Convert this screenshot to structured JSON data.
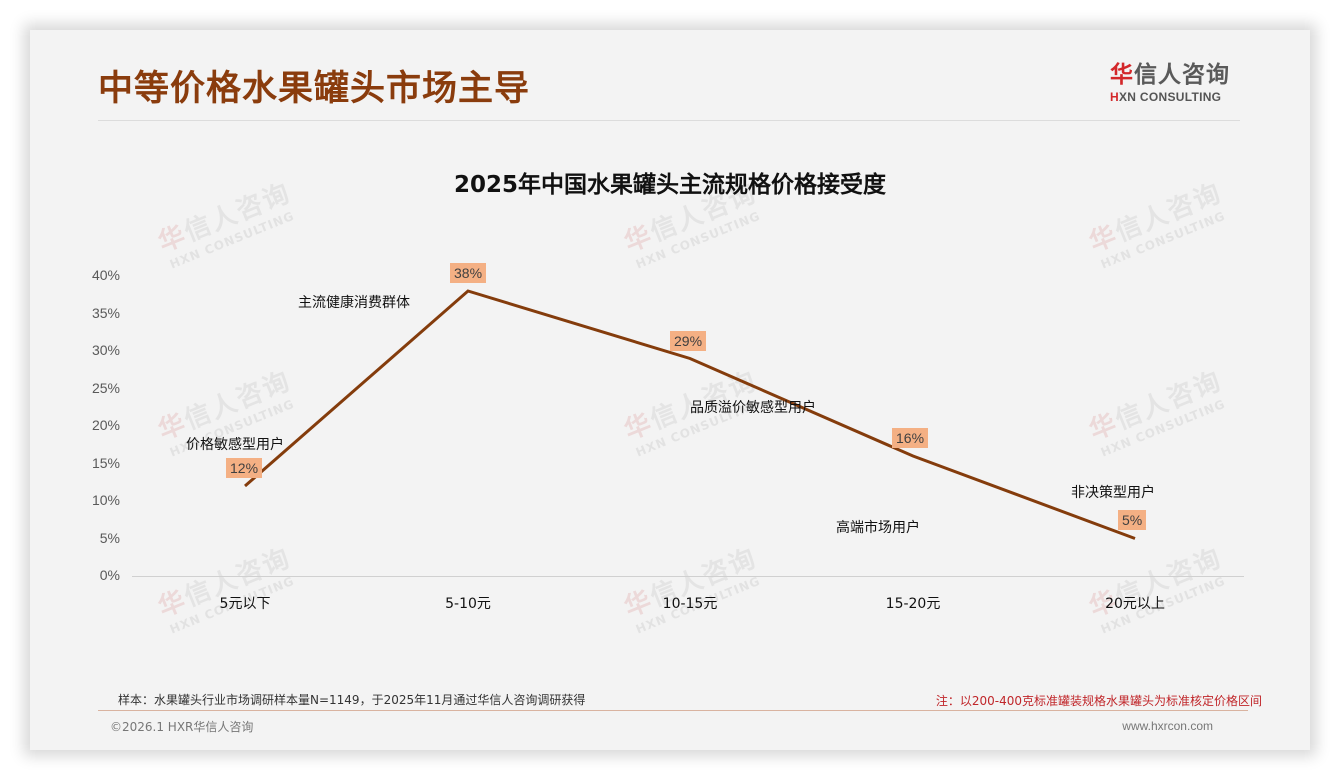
{
  "header": {
    "title": "中等价格水果罐头市场主导",
    "logo_cn_first": "华",
    "logo_cn_rest": "信人咨询",
    "logo_en_first": "H",
    "logo_en_rest": "XN CONSULTING"
  },
  "watermark": {
    "cn_first": "华",
    "cn_rest": "信人咨询",
    "en": "HXN CONSULTING"
  },
  "chart_data": {
    "type": "line",
    "title": "2025年中国水果罐头主流规格价格接受度",
    "categories": [
      "5元以下",
      "5-10元",
      "10-15元",
      "15-20元",
      "20元以上"
    ],
    "values": [
      12,
      38,
      29,
      16,
      5
    ],
    "value_labels": [
      "12%",
      "38%",
      "29%",
      "16%",
      "5%"
    ],
    "annotations": [
      "价格敏感型用户",
      "主流健康消费群体",
      "品质溢价敏感型用户",
      "高端市场用户",
      "非决策型用户"
    ],
    "ylim": [
      0,
      40
    ],
    "yticks": [
      "0%",
      "5%",
      "10%",
      "15%",
      "20%",
      "25%",
      "30%",
      "35%",
      "40%"
    ],
    "xlabel": "",
    "ylabel": "",
    "grid": false,
    "legend": "none",
    "line_color": "#843c0c",
    "label_bg_color": "#f4b084"
  },
  "footer": {
    "sample_note": "样本：水果罐头行业市场调研样本量N=1149，于2025年11月通过华信人咨询调研获得",
    "right_note": "注：以200-400克标准罐装规格水果罐头为标准核定价格区间",
    "copyright": "©2026.1 HXR华信人咨询",
    "website": "www.hxrcon.com"
  }
}
